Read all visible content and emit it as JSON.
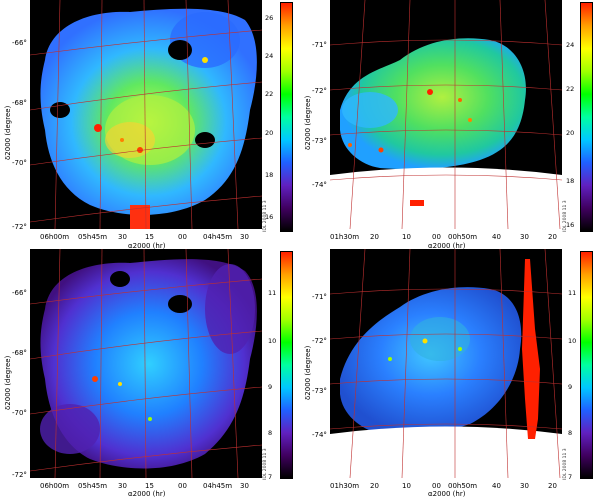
{
  "panels": [
    {
      "id": "top-left",
      "ra_ticks": [
        "06h00m",
        "05h45m",
        "30",
        "15",
        "00",
        "04h45m",
        "30"
      ],
      "dec_ticks": [
        "-66°",
        "-68°",
        "-70°",
        "-72°"
      ],
      "cbar_ticks": [
        "26",
        "24",
        "22",
        "20",
        "18",
        "16"
      ],
      "credit": "IDL 2008 11 3",
      "xlabel": "α2000 (hr)",
      "ylabel": "δ2000 (degree)"
    },
    {
      "id": "top-right",
      "ra_ticks": [
        "01h30m",
        "20",
        "10",
        "00",
        "00h50m",
        "40",
        "30",
        "20"
      ],
      "dec_ticks": [
        "-71°",
        "-72°",
        "-73°",
        "-74°"
      ],
      "cbar_ticks": [
        "24",
        "22",
        "20",
        "18",
        "16"
      ],
      "credit": "IDL 2008 11 3",
      "xlabel": "α2000 (hr)",
      "ylabel": "δ2000 (degree)"
    },
    {
      "id": "bottom-left",
      "ra_ticks": [
        "06h00m",
        "05h45m",
        "30",
        "15",
        "00",
        "04h45m",
        "30"
      ],
      "dec_ticks": [
        "-66°",
        "-68°",
        "-70°",
        "-72°"
      ],
      "cbar_ticks": [
        "11",
        "10",
        "9",
        "8",
        "7"
      ],
      "credit": "IDL 2008 11 3",
      "xlabel": "α2000 (hr)",
      "ylabel": "δ2000 (degree)"
    },
    {
      "id": "bottom-right",
      "ra_ticks": [
        "01h30m",
        "20",
        "10",
        "00",
        "00h50m",
        "40",
        "30",
        "20"
      ],
      "dec_ticks": [
        "-71°",
        "-72°",
        "-73°",
        "-74°"
      ],
      "cbar_ticks": [
        "11",
        "10",
        "9",
        "8",
        "7"
      ],
      "credit": "IDL 2008 11 3",
      "xlabel": "α2000 (hr)",
      "ylabel": "δ2000 (degree)"
    }
  ],
  "colors": {
    "background": "#000000",
    "grid": "#c03030",
    "colorbar": [
      "#ff2000",
      "#ffa000",
      "#ffff00",
      "#a0ff00",
      "#00ff00",
      "#00ffa0",
      "#00c8ff",
      "#2060ff",
      "#6020c0",
      "#400060",
      "#000000"
    ]
  }
}
